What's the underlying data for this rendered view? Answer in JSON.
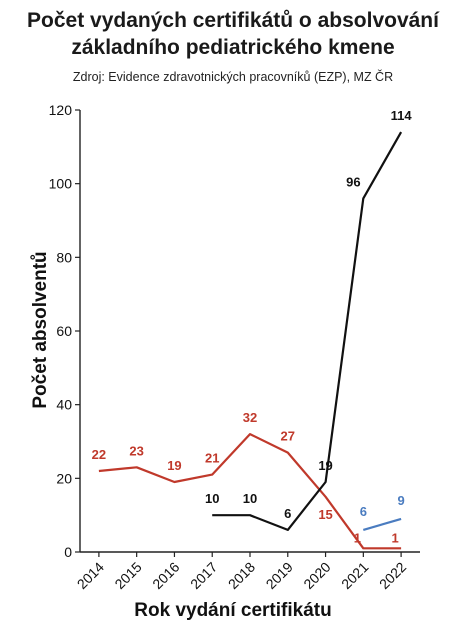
{
  "chart_data": {
    "type": "line",
    "title_line1": "Počet vydaných certifikátů o absolvování",
    "title_line2": "základního pediatrického kmene",
    "source": "Zdroj: Evidence zdravotnických pracovníků (EZP), MZ ČR",
    "xlabel": "Rok vydání certifikátu",
    "ylabel": "Počet absolventů",
    "categories": [
      "2014",
      "2015",
      "2016",
      "2017",
      "2018",
      "2019",
      "2020",
      "2021",
      "2022"
    ],
    "ylim": [
      0,
      120
    ],
    "yticks": [
      0,
      20,
      40,
      60,
      80,
      100,
      120
    ],
    "grid": false,
    "series": [
      {
        "color": "#c0392b",
        "values": [
          22,
          23,
          19,
          21,
          32,
          27,
          15,
          1,
          1
        ]
      },
      {
        "color": "#111111",
        "values": [
          null,
          null,
          null,
          10,
          10,
          6,
          19,
          96,
          114
        ]
      },
      {
        "color": "#4a7cc0",
        "values": [
          null,
          null,
          null,
          null,
          null,
          null,
          null,
          6,
          9
        ]
      }
    ]
  }
}
